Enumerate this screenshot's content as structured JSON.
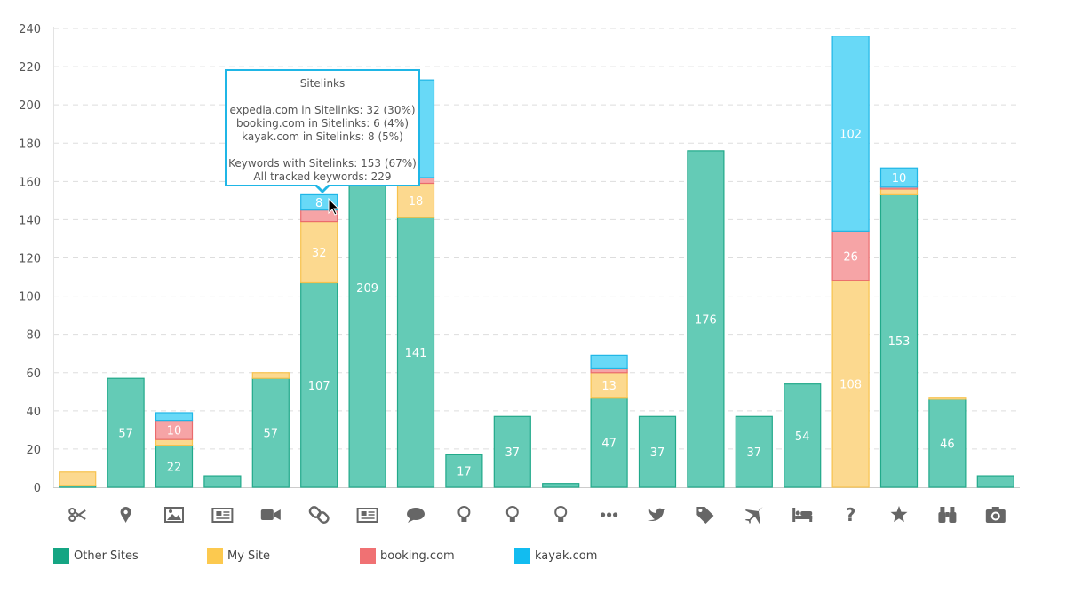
{
  "chart_data": {
    "type": "bar",
    "stacked": true,
    "categories": [
      "scissors-icon",
      "map-marker-icon",
      "image-icon",
      "newspaper-icon",
      "video-camera-icon",
      "link-icon",
      "newspaper-icon",
      "comment-icon",
      "lightbulb-icon",
      "lightbulb-icon",
      "lightbulb-icon",
      "ellipsis-icon",
      "twitter-icon",
      "tags-icon",
      "plane-icon",
      "bed-icon",
      "question-icon",
      "star-icon",
      "binoculars-icon",
      "camera-icon"
    ],
    "series": [
      {
        "name": "Other Sites",
        "color": "#64cbb6",
        "border": "#21a98a",
        "values": [
          1,
          57,
          22,
          6,
          57,
          107,
          209,
          141,
          17,
          37,
          2,
          47,
          37,
          176,
          37,
          54,
          0,
          153,
          46,
          6
        ],
        "labels": [
          "",
          "57",
          "22",
          "",
          "57",
          "107",
          "209",
          "141",
          "17",
          "37",
          "",
          "47",
          "37",
          "176",
          "37",
          "54",
          "",
          "153",
          "46",
          ""
        ]
      },
      {
        "name": "My Site",
        "color": "#fcd98f",
        "border": "#f7c24d",
        "values": [
          7,
          0,
          3,
          0,
          3,
          32,
          0,
          18,
          0,
          0,
          0,
          13,
          0,
          0,
          0,
          0,
          108,
          3,
          1,
          0
        ],
        "labels": [
          "",
          "",
          "",
          "",
          "",
          "32",
          "",
          "18",
          "",
          "",
          "",
          "13",
          "",
          "",
          "",
          "",
          "108",
          "",
          "",
          ""
        ]
      },
      {
        "name": "booking.com",
        "color": "#f6a4a6",
        "border": "#ea6b6d",
        "values": [
          0,
          0,
          10,
          0,
          0,
          6,
          0,
          3,
          0,
          0,
          0,
          2,
          0,
          0,
          0,
          0,
          26,
          1,
          0,
          0
        ],
        "labels": [
          "",
          "",
          "10",
          "",
          "",
          "",
          "",
          "",
          "",
          "",
          "",
          "",
          "",
          "",
          "",
          "",
          "26",
          "",
          "",
          ""
        ]
      },
      {
        "name": "kayak.com",
        "color": "#68d9f7",
        "border": "#1fb6e6",
        "values": [
          0,
          0,
          4,
          0,
          0,
          8,
          0,
          51,
          0,
          0,
          0,
          7,
          0,
          0,
          0,
          0,
          102,
          10,
          0,
          0
        ],
        "labels": [
          "",
          "",
          "",
          "",
          "",
          "8",
          "",
          "",
          "",
          "",
          "",
          "",
          "",
          "",
          "",
          "",
          "102",
          "10",
          "",
          ""
        ]
      }
    ],
    "ylim": [
      0,
      240
    ],
    "yticks": [
      0,
      20,
      40,
      60,
      80,
      100,
      120,
      140,
      160,
      180,
      200,
      220,
      240
    ],
    "grid": true,
    "legend_position": "bottom-left"
  },
  "tooltip": {
    "title": "Sitelinks",
    "lines1": [
      "expedia.com in Sitelinks: 32 (30%)",
      "booking.com in Sitelinks: 6 (4%)",
      "kayak.com in Sitelinks: 8 (5%)"
    ],
    "lines2": [
      "Keywords with Sitelinks: 153 (67%)",
      "All tracked keywords: 229"
    ]
  },
  "legend": [
    {
      "label": "Other Sites",
      "color": "#15a583"
    },
    {
      "label": "My Site",
      "color": "#fcc94f"
    },
    {
      "label": "booking.com",
      "color": "#f07173"
    },
    {
      "label": "kayak.com",
      "color": "#12bcf0"
    }
  ]
}
